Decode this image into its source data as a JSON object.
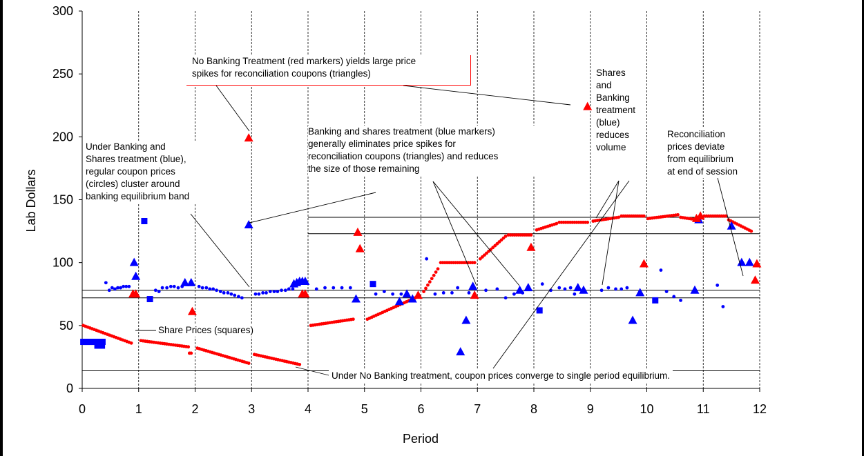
{
  "chart_data": {
    "type": "scatter",
    "title": "",
    "xlabel": "Period",
    "ylabel": "Lab Dollars",
    "xlim": [
      0,
      12
    ],
    "ylim": [
      0,
      300
    ],
    "x_ticks": [
      "0",
      "1",
      "2",
      "3",
      "4",
      "5",
      "6",
      "7",
      "8",
      "9",
      "10",
      "11",
      "12"
    ],
    "y_ticks": [
      "0",
      "50",
      "100",
      "150",
      "200",
      "250",
      "300"
    ],
    "grid": "dashed vertical lines at each period boundary",
    "reference_lines": [
      {
        "y": 14,
        "x_from": 0,
        "x_to": 12
      },
      {
        "y": 72,
        "x_from": 0,
        "x_to": 12
      },
      {
        "y": 78,
        "x_from": 0,
        "x_to": 12
      },
      {
        "y": 123,
        "x_from": 4,
        "x_to": 12
      },
      {
        "y": 136,
        "x_from": 4,
        "x_to": 12
      }
    ],
    "series": [
      {
        "marker": "circle",
        "color": "#ff0000",
        "segments": [
          {
            "x0": 0.02,
            "x1": 0.87,
            "y0": 50,
            "y1": 36
          },
          {
            "x0": 1.04,
            "x1": 1.88,
            "y0": 38,
            "y1": 33
          },
          {
            "x0": 1.9,
            "x1": 1.93,
            "y0": 28,
            "y1": 28
          },
          {
            "x0": 2.04,
            "x1": 2.95,
            "y0": 32,
            "y1": 20
          },
          {
            "x0": 3.05,
            "x1": 3.85,
            "y0": 27,
            "y1": 19
          },
          {
            "x0": 4.05,
            "x1": 4.8,
            "y0": 50,
            "y1": 55
          },
          {
            "x0": 5.05,
            "x1": 5.9,
            "y0": 55,
            "y1": 72
          },
          {
            "x0": 6.05,
            "x1": 6.3,
            "y0": 77,
            "y1": 95
          },
          {
            "x0": 6.35,
            "x1": 6.95,
            "y0": 100,
            "y1": 100
          },
          {
            "x0": 7.05,
            "x1": 7.5,
            "y0": 103,
            "y1": 121
          },
          {
            "x0": 7.55,
            "x1": 7.95,
            "y0": 122,
            "y1": 122
          },
          {
            "x0": 8.05,
            "x1": 8.4,
            "y0": 126,
            "y1": 131
          },
          {
            "x0": 8.45,
            "x1": 8.95,
            "y0": 132,
            "y1": 132
          },
          {
            "x0": 9.05,
            "x1": 9.5,
            "y0": 133,
            "y1": 136
          },
          {
            "x0": 9.55,
            "x1": 9.95,
            "y0": 137,
            "y1": 137
          },
          {
            "x0": 10.02,
            "x1": 10.55,
            "y0": 135,
            "y1": 138
          },
          {
            "x0": 10.6,
            "x1": 10.9,
            "y0": 136,
            "y1": 134
          },
          {
            "x0": 11.02,
            "x1": 11.4,
            "y0": 137,
            "y1": 137
          },
          {
            "x0": 11.45,
            "x1": 11.85,
            "y0": 134,
            "y1": 125
          }
        ]
      },
      {
        "marker": "circle",
        "color": "#0000ff",
        "points": [
          [
            0.42,
            84
          ],
          [
            0.48,
            78
          ],
          [
            0.53,
            80
          ],
          [
            0.58,
            79
          ],
          [
            0.63,
            80
          ],
          [
            0.68,
            80
          ],
          [
            0.73,
            81
          ],
          [
            0.78,
            81
          ],
          [
            0.83,
            81
          ],
          [
            1.3,
            78
          ],
          [
            1.36,
            77
          ],
          [
            1.42,
            80
          ],
          [
            1.5,
            80
          ],
          [
            1.57,
            81
          ],
          [
            1.63,
            81
          ],
          [
            1.7,
            80
          ],
          [
            1.77,
            81
          ],
          [
            2.07,
            81
          ],
          [
            2.13,
            80
          ],
          [
            2.2,
            80
          ],
          [
            2.26,
            79
          ],
          [
            2.32,
            79
          ],
          [
            2.38,
            78
          ],
          [
            2.45,
            77
          ],
          [
            2.51,
            76
          ],
          [
            2.58,
            76
          ],
          [
            2.64,
            75
          ],
          [
            2.7,
            74
          ],
          [
            2.77,
            73
          ],
          [
            2.83,
            72
          ],
          [
            3.07,
            75
          ],
          [
            3.13,
            75
          ],
          [
            3.2,
            76
          ],
          [
            3.26,
            76
          ],
          [
            3.33,
            77
          ],
          [
            3.4,
            77
          ],
          [
            3.46,
            77
          ],
          [
            3.53,
            78
          ],
          [
            3.6,
            78
          ],
          [
            3.66,
            79
          ],
          [
            3.73,
            79
          ],
          [
            4.15,
            79
          ],
          [
            4.3,
            80
          ],
          [
            4.45,
            80
          ],
          [
            4.6,
            80
          ],
          [
            4.75,
            80
          ],
          [
            5.2,
            75
          ],
          [
            5.35,
            77
          ],
          [
            5.5,
            75
          ],
          [
            5.65,
            75
          ],
          [
            6.1,
            103
          ],
          [
            6.25,
            75
          ],
          [
            6.4,
            76
          ],
          [
            6.55,
            76
          ],
          [
            6.65,
            80
          ],
          [
            6.85,
            76
          ],
          [
            7.15,
            78
          ],
          [
            7.35,
            79
          ],
          [
            7.5,
            72
          ],
          [
            7.65,
            75
          ],
          [
            7.8,
            76
          ],
          [
            8.15,
            83
          ],
          [
            8.3,
            78
          ],
          [
            8.45,
            80
          ],
          [
            8.55,
            79
          ],
          [
            8.65,
            80
          ],
          [
            8.72,
            75
          ],
          [
            8.88,
            79
          ],
          [
            9.2,
            78
          ],
          [
            9.32,
            80
          ],
          [
            9.45,
            79
          ],
          [
            9.55,
            79
          ],
          [
            9.65,
            80
          ],
          [
            10.25,
            94
          ],
          [
            10.35,
            77
          ],
          [
            10.48,
            73
          ],
          [
            10.6,
            70
          ],
          [
            11.25,
            82
          ],
          [
            11.35,
            65
          ]
        ]
      },
      {
        "marker": "square",
        "color": "#0000ff",
        "points": [
          [
            0.02,
            37
          ],
          [
            0.05,
            37
          ],
          [
            0.08,
            37
          ],
          [
            0.12,
            37
          ],
          [
            0.16,
            37
          ],
          [
            0.2,
            37
          ],
          [
            0.24,
            37
          ],
          [
            0.28,
            37
          ],
          [
            0.32,
            37
          ],
          [
            0.36,
            37
          ],
          [
            0.27,
            34
          ],
          [
            0.31,
            34
          ],
          [
            0.35,
            34
          ],
          [
            1.1,
            133
          ],
          [
            1.2,
            71
          ],
          [
            5.15,
            83
          ],
          [
            8.1,
            62
          ],
          [
            10.15,
            70
          ]
        ]
      },
      {
        "marker": "triangle",
        "color": "#0000ff",
        "points": [
          [
            0.92,
            100
          ],
          [
            0.95,
            89
          ],
          [
            1.93,
            84
          ],
          [
            1.82,
            84
          ],
          [
            2.95,
            130
          ],
          [
            3.75,
            83
          ],
          [
            3.8,
            84
          ],
          [
            3.85,
            85
          ],
          [
            3.9,
            85
          ],
          [
            3.95,
            85
          ],
          [
            4.85,
            71
          ],
          [
            5.62,
            69
          ],
          [
            5.75,
            75
          ],
          [
            5.85,
            71
          ],
          [
            6.7,
            29
          ],
          [
            6.8,
            54
          ],
          [
            6.92,
            81
          ],
          [
            7.75,
            78
          ],
          [
            7.9,
            80
          ],
          [
            8.78,
            80
          ],
          [
            8.88,
            78
          ],
          [
            9.75,
            54
          ],
          [
            9.88,
            76
          ],
          [
            10.85,
            78
          ],
          [
            10.92,
            134
          ],
          [
            11.5,
            129
          ],
          [
            11.68,
            100
          ],
          [
            11.82,
            100
          ]
        ]
      },
      {
        "marker": "triangle",
        "color": "#ff0000",
        "points": [
          [
            0.9,
            75
          ],
          [
            0.95,
            75
          ],
          [
            1.95,
            61
          ],
          [
            2.95,
            199
          ],
          [
            3.9,
            75
          ],
          [
            3.95,
            75
          ],
          [
            4.88,
            124
          ],
          [
            4.92,
            111
          ],
          [
            5.95,
            74
          ],
          [
            6.95,
            74
          ],
          [
            7.95,
            112
          ],
          [
            8.95,
            224
          ],
          [
            9.95,
            99
          ],
          [
            10.88,
            135
          ],
          [
            10.95,
            137
          ],
          [
            11.92,
            86
          ],
          [
            11.95,
            99
          ]
        ]
      }
    ],
    "annotations": [
      {
        "id": "nobank",
        "lines": [
          "No Banking Treatment (red markers) yields large price",
          "spikes for reconciliation coupons (triangles)"
        ]
      },
      {
        "id": "bankshares",
        "lines": [
          "Banking and shares treatment (blue markers)",
          "generally eliminates price spikes for",
          "reconciliation coupons (triangles) and reduces",
          "the size of those remaining"
        ]
      },
      {
        "id": "underbank",
        "lines": [
          "Under Banking and",
          "Shares treatment (blue),",
          "regular coupon prices",
          "(circles) cluster around",
          "banking equilibrium band"
        ]
      },
      {
        "id": "sharesvol",
        "lines": [
          "Shares",
          "and",
          "Banking",
          "treatment",
          "(blue)",
          "reduces",
          "volume"
        ]
      },
      {
        "id": "recon",
        "lines": [
          "Reconciliation",
          "prices deviate",
          "from equilibrium",
          "at end of session"
        ]
      },
      {
        "id": "shareprices",
        "lines": [
          "Share Prices (squares)"
        ]
      },
      {
        "id": "converge",
        "lines": [
          "Under No Banking treatment, coupon prices converge to single period equilibrium."
        ]
      }
    ]
  }
}
